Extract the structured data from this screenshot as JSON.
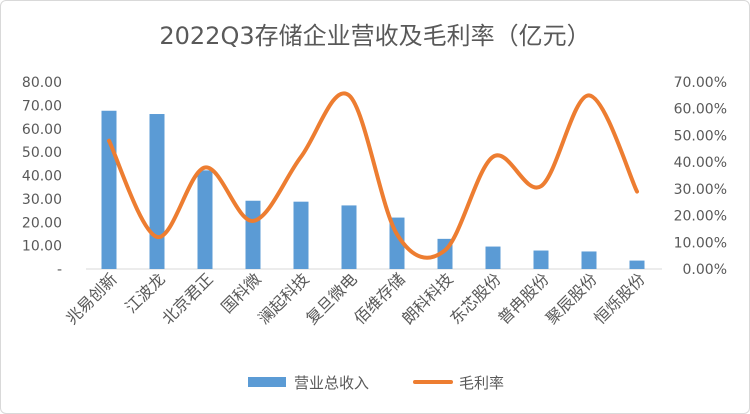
{
  "chart_data": {
    "type": "bar",
    "title": "2022Q3存储企业营收及毛利率（亿元）",
    "categories": [
      "兆易创新",
      "江波龙",
      "北京君正",
      "国科微",
      "澜起科技",
      "复旦微电",
      "佰维存储",
      "朗科科技",
      "东芯股份",
      "普冉股份",
      "聚辰股份",
      "恒烁股份"
    ],
    "series": [
      {
        "name": "营业总收入",
        "type": "bar",
        "axis": "left",
        "color": "#5b9bd5",
        "values": [
          67.7,
          66.3,
          42.2,
          29.2,
          28.8,
          27.2,
          22.0,
          12.9,
          9.6,
          7.9,
          7.5,
          3.6
        ]
      },
      {
        "name": "毛利率",
        "type": "line",
        "axis": "right",
        "color": "#ed7d31",
        "values": [
          0.48,
          0.12,
          0.38,
          0.18,
          0.42,
          0.65,
          0.13,
          0.07,
          0.42,
          0.31,
          0.65,
          0.29
        ]
      }
    ],
    "y_left": {
      "ylim": [
        0,
        80
      ],
      "ticks": [
        "-",
        "10.00",
        "20.00",
        "30.00",
        "40.00",
        "50.00",
        "60.00",
        "70.00",
        "80.00"
      ]
    },
    "y_right": {
      "ylim": [
        0,
        0.7
      ],
      "ticks": [
        "0.00%",
        "10.00%",
        "20.00%",
        "30.00%",
        "40.00%",
        "50.00%",
        "60.00%",
        "70.00%"
      ]
    },
    "legend": {
      "position": "bottom"
    },
    "grid": false
  }
}
